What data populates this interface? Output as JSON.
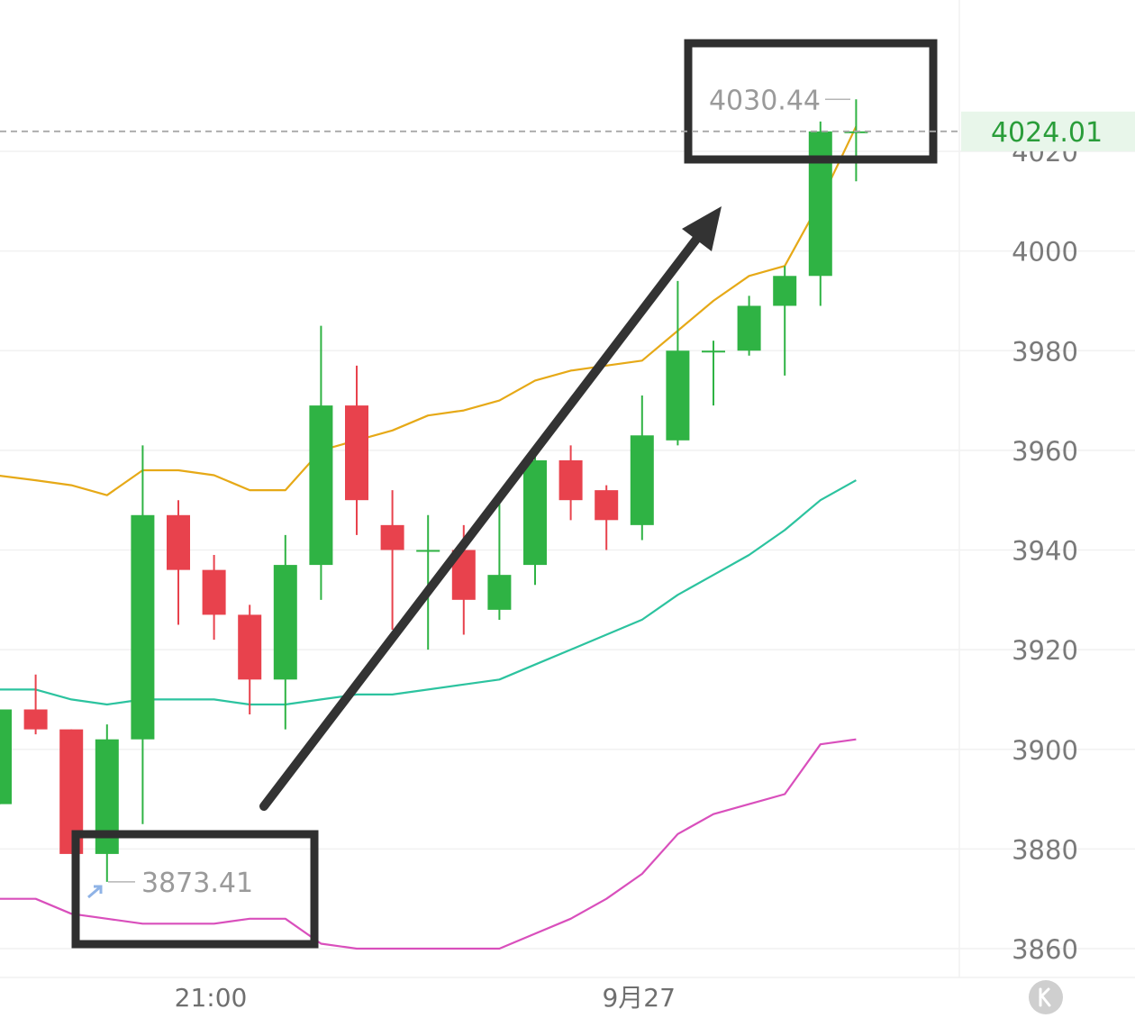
{
  "chart_data": {
    "type": "candlestick",
    "y_axis": {
      "ticks": [
        3860,
        3880,
        3900,
        3920,
        3940,
        3960,
        3980,
        4000,
        4020
      ],
      "range": [
        3855,
        4045
      ]
    },
    "x_axis": {
      "labels": [
        {
          "text": "21:00",
          "index": 5
        },
        {
          "text": "9月27",
          "index": 17
        }
      ]
    },
    "colors": {
      "up": "#2fb344",
      "down": "#e8424d",
      "upper_band": "#e6a917",
      "middle_band": "#2cc39f",
      "lower_band": "#d94fbc",
      "last_price": "#2a9d3a"
    },
    "candles": [
      {
        "open": 3889,
        "high": 3908,
        "low": 3889,
        "close": 3908
      },
      {
        "open": 3908,
        "high": 3915,
        "low": 3903,
        "close": 3904
      },
      {
        "open": 3904,
        "high": 3904,
        "low": 3879,
        "close": 3879
      },
      {
        "open": 3879,
        "high": 3905,
        "low": 3873.41,
        "close": 3902
      },
      {
        "open": 3902,
        "high": 3961,
        "low": 3885,
        "close": 3947
      },
      {
        "open": 3947,
        "high": 3950,
        "low": 3925,
        "close": 3936
      },
      {
        "open": 3936,
        "high": 3939,
        "low": 3922,
        "close": 3927
      },
      {
        "open": 3927,
        "high": 3929,
        "low": 3907,
        "close": 3914
      },
      {
        "open": 3914,
        "high": 3943,
        "low": 3904,
        "close": 3937
      },
      {
        "open": 3937,
        "high": 3985,
        "low": 3930,
        "close": 3969
      },
      {
        "open": 3969,
        "high": 3977,
        "low": 3943,
        "close": 3950
      },
      {
        "open": 3945,
        "high": 3952,
        "low": 3924,
        "close": 3940
      },
      {
        "open": 3940,
        "high": 3947,
        "low": 3920,
        "close": 3940
      },
      {
        "open": 3940,
        "high": 3945,
        "low": 3923,
        "close": 3930
      },
      {
        "open": 3928,
        "high": 3950,
        "low": 3926,
        "close": 3935
      },
      {
        "open": 3937,
        "high": 3960,
        "low": 3933,
        "close": 3958
      },
      {
        "open": 3958,
        "high": 3961,
        "low": 3946,
        "close": 3950
      },
      {
        "open": 3952,
        "high": 3953,
        "low": 3940,
        "close": 3946
      },
      {
        "open": 3945,
        "high": 3971,
        "low": 3942,
        "close": 3963
      },
      {
        "open": 3962,
        "high": 3994,
        "low": 3961,
        "close": 3980
      },
      {
        "open": 3980,
        "high": 3982,
        "low": 3969,
        "close": 3980
      },
      {
        "open": 3980,
        "high": 3991,
        "low": 3979,
        "close": 3989
      },
      {
        "open": 3989,
        "high": 3997,
        "low": 3975,
        "close": 3995
      },
      {
        "open": 3995,
        "high": 4026,
        "low": 3989,
        "close": 4024
      },
      {
        "open": 4024.01,
        "high": 4030.44,
        "low": 4014,
        "close": 4024.01
      }
    ],
    "bands": {
      "upper": [
        3955,
        3954,
        3953,
        3951,
        3956,
        3956,
        3955,
        3952,
        3952,
        3960,
        3962,
        3964,
        3967,
        3968,
        3970,
        3974,
        3976,
        3977,
        3978,
        3984,
        3990,
        3995,
        3997,
        4010,
        4025
      ],
      "middle": [
        3912,
        3912,
        3910,
        3909,
        3910,
        3910,
        3910,
        3909,
        3909,
        3910,
        3911,
        3911,
        3912,
        3913,
        3914,
        3917,
        3920,
        3923,
        3926,
        3931,
        3935,
        3939,
        3944,
        3950,
        3954
      ],
      "lower": [
        3870,
        3870,
        3867,
        3866,
        3865,
        3865,
        3865,
        3866,
        3866,
        3861,
        3860,
        3860,
        3860,
        3860,
        3860,
        3863,
        3866,
        3870,
        3875,
        3883,
        3887,
        3889,
        3891,
        3901,
        3902
      ]
    },
    "last_price": "4024.01",
    "annotations": {
      "high_label": "4030.44",
      "low_label": "3873.41"
    }
  },
  "ui": {
    "logo_icon": "k-logo-icon"
  }
}
